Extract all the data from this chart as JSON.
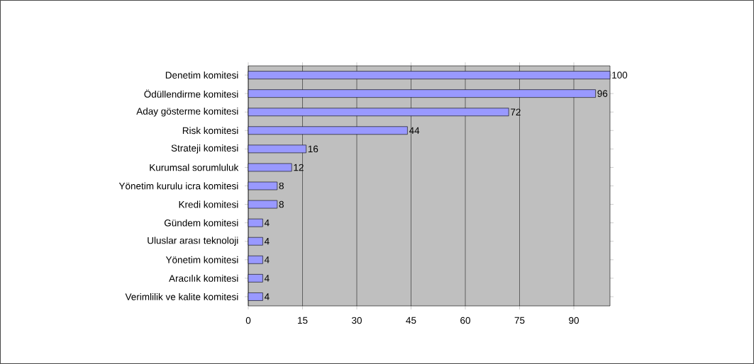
{
  "chart_data": {
    "type": "bar",
    "orientation": "horizontal",
    "categories": [
      "Denetim komitesi",
      "Ödüllendirme komitesi",
      "Aday gösterme komitesi",
      "Risk komitesi",
      "Strateji komitesi",
      "Kurumsal sorumluluk",
      "Yönetim kurulu icra komitesi",
      "Kredi komitesi",
      "Gündem komitesi",
      "Uluslar arası teknoloji",
      "Yönetim komitesi",
      "Aracılık komitesi",
      "Verimlilik ve kalite komitesi"
    ],
    "values": [
      100,
      96,
      72,
      44,
      16,
      12,
      8,
      8,
      4,
      4,
      4,
      4,
      4
    ],
    "color": "#9999ff",
    "xlim": [
      0,
      100
    ],
    "xticks": [
      0,
      15,
      30,
      45,
      60,
      75,
      90
    ],
    "grid": "x",
    "data_labels": true
  }
}
